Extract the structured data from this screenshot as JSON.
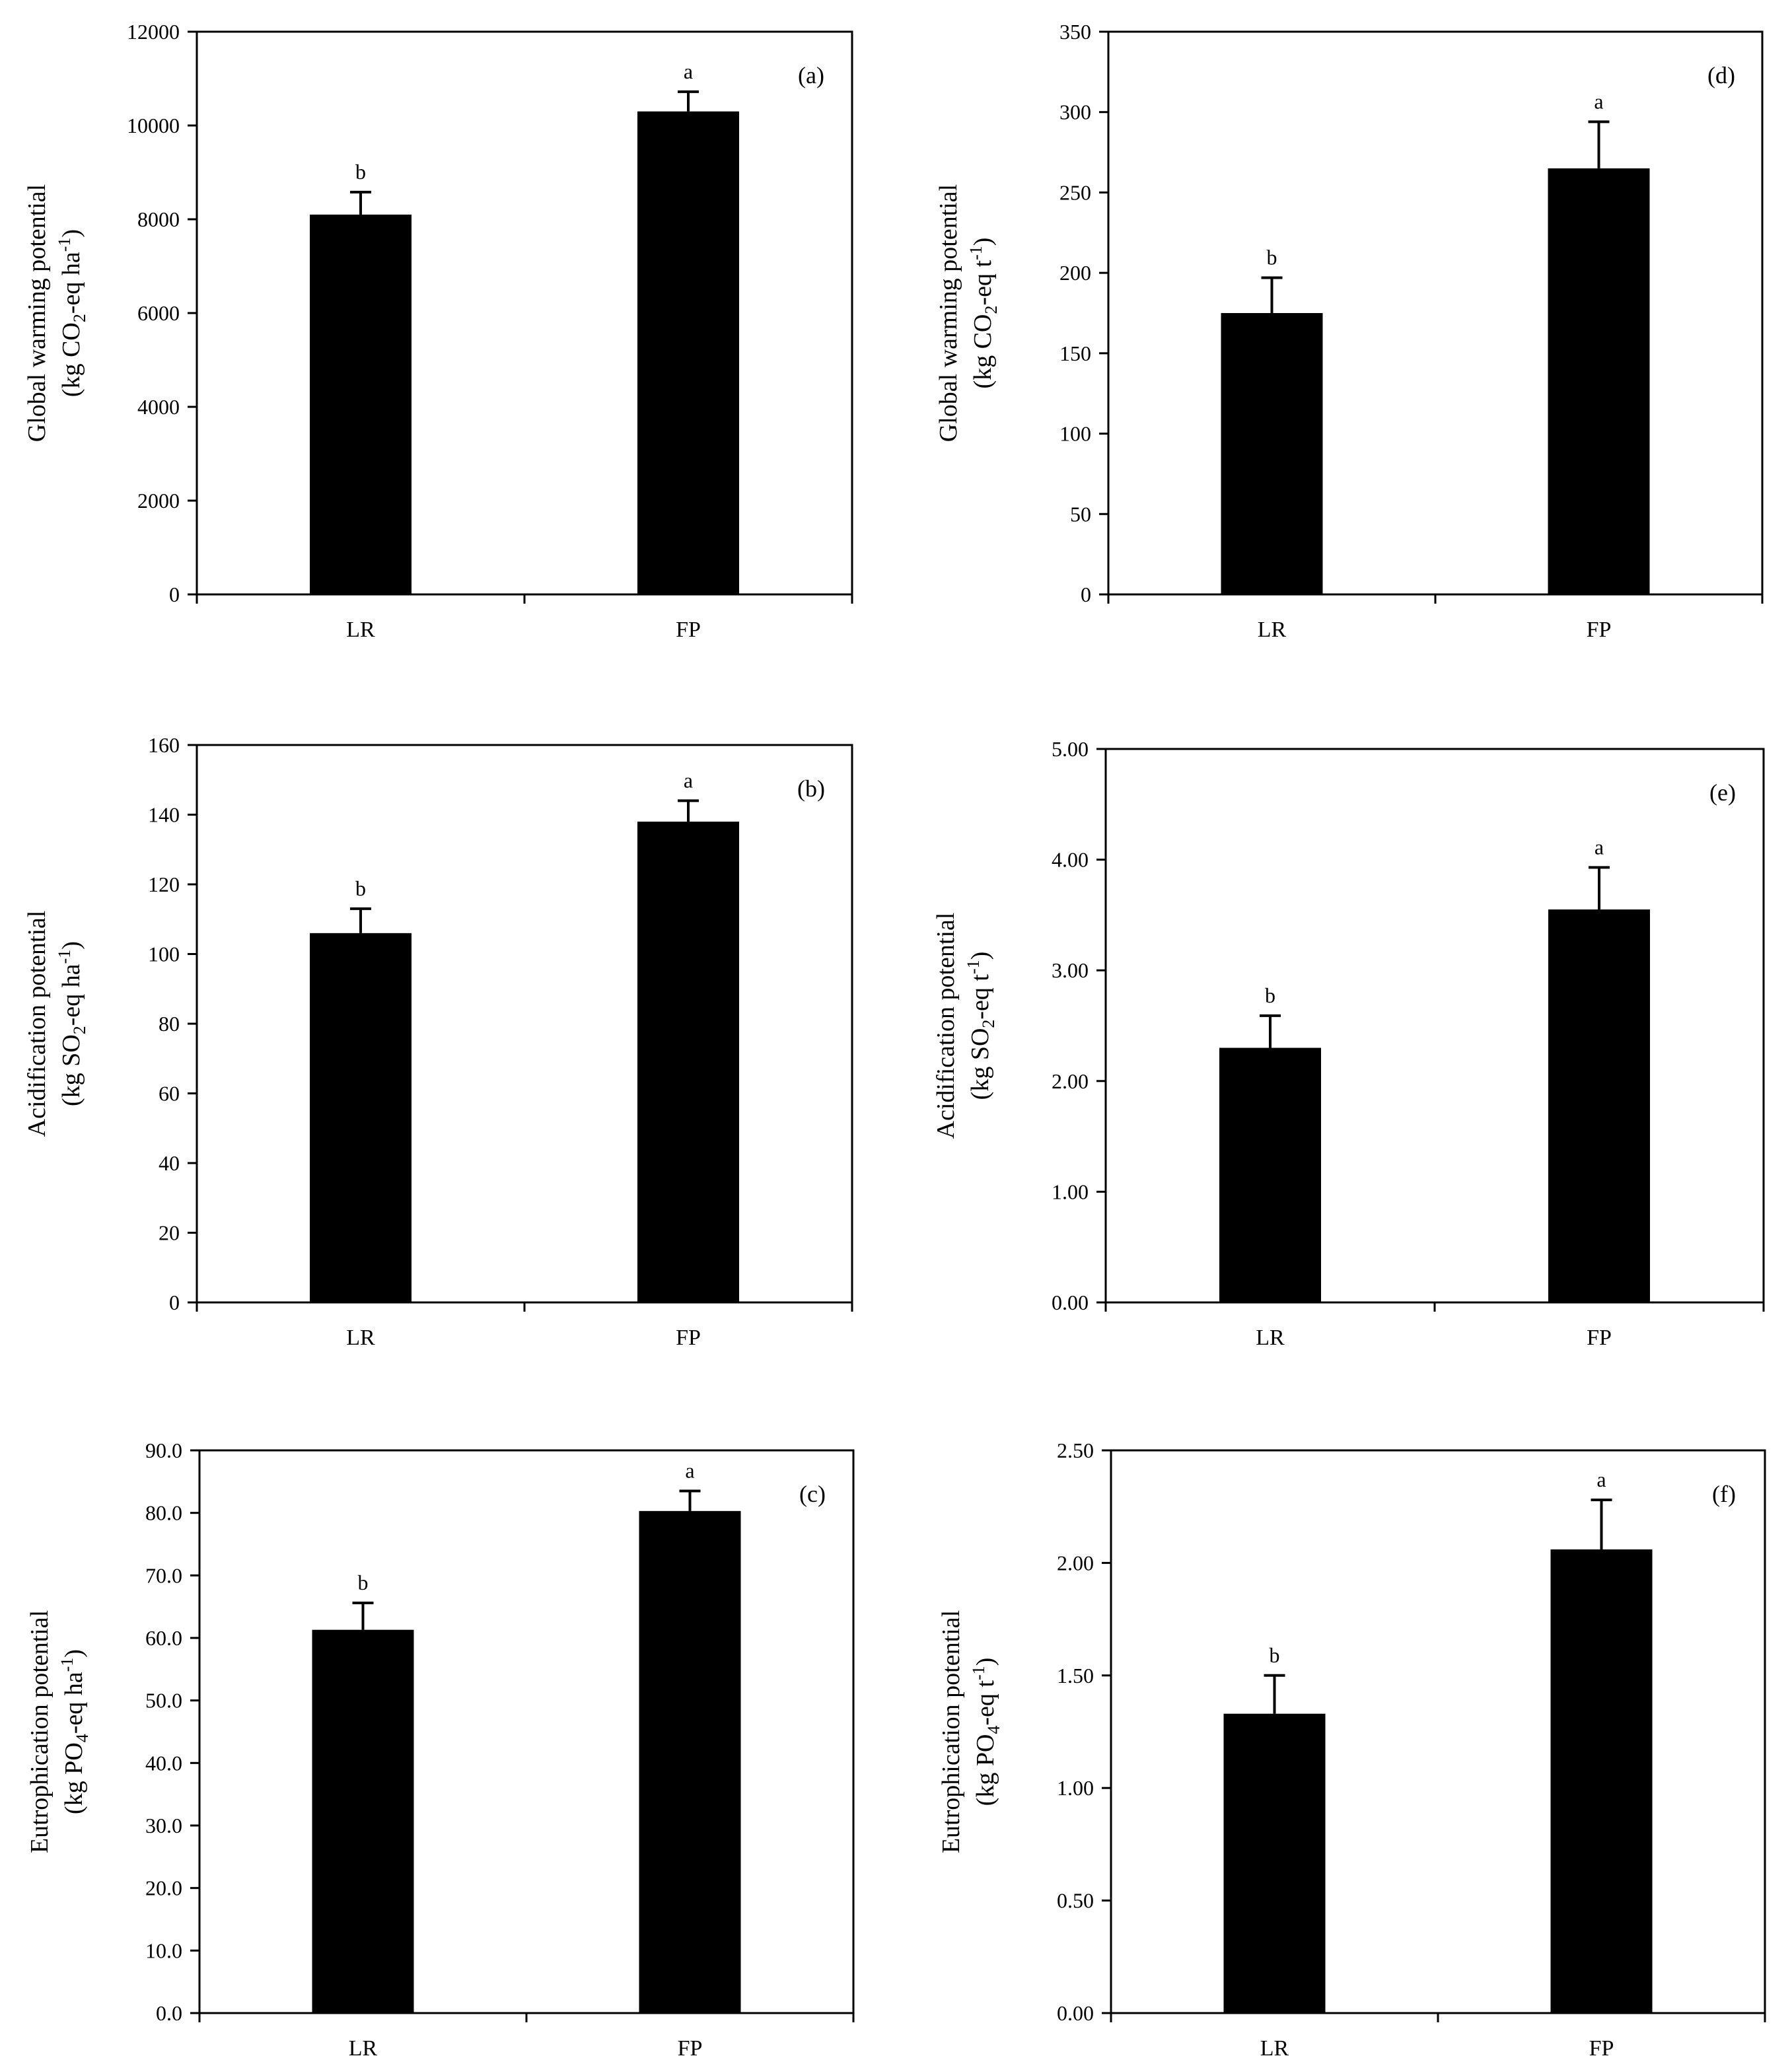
{
  "figure": {
    "panels": [
      "(a)",
      "(b)",
      "(c)",
      "(d)",
      "(e)",
      "(f)"
    ]
  },
  "chart_data": [
    {
      "type": "bar",
      "panel_label": "(a)",
      "categories": [
        "LR",
        "FP"
      ],
      "values": [
        8100,
        10300
      ],
      "errors": [
        480,
        420
      ],
      "significance": [
        "b",
        "a"
      ],
      "ylabel_line1": "Global warming potential",
      "ylabel_line2_parts": [
        "(kg CO",
        "2",
        "-eq ha",
        "-1",
        ")"
      ],
      "ylim": [
        0,
        12000
      ],
      "yticks": [
        0,
        2000,
        4000,
        6000,
        8000,
        10000,
        12000
      ],
      "ytick_labels": [
        "0",
        "2000",
        "4000",
        "6000",
        "8000",
        "10000",
        "12000"
      ],
      "grid": false,
      "bar_color": "#000000"
    },
    {
      "type": "bar",
      "panel_label": "(b)",
      "categories": [
        "LR",
        "FP"
      ],
      "values": [
        106,
        138
      ],
      "errors": [
        7,
        6
      ],
      "significance": [
        "b",
        "a"
      ],
      "ylabel_line1": "Acidification potential",
      "ylabel_line2_parts": [
        "(kg SO",
        "2",
        "-eq ha",
        "-1",
        ")"
      ],
      "ylim": [
        0,
        160
      ],
      "yticks": [
        0,
        20,
        40,
        60,
        80,
        100,
        120,
        140,
        160
      ],
      "ytick_labels": [
        "0",
        "20",
        "40",
        "60",
        "80",
        "100",
        "120",
        "140",
        "160"
      ],
      "grid": false,
      "bar_color": "#000000"
    },
    {
      "type": "bar",
      "panel_label": "(c)",
      "categories": [
        "LR",
        "FP"
      ],
      "values": [
        61.3,
        80.3
      ],
      "errors": [
        4.3,
        3.2
      ],
      "significance": [
        "b",
        "a"
      ],
      "ylabel_line1": "Eutrophication potential",
      "ylabel_line2_parts": [
        "(kg PO",
        "4",
        "-eq ha",
        "-1",
        ")"
      ],
      "ylim": [
        0,
        90
      ],
      "yticks": [
        0,
        10,
        20,
        30,
        40,
        50,
        60,
        70,
        80,
        90
      ],
      "ytick_labels": [
        "0.0",
        "10.0",
        "20.0",
        "30.0",
        "40.0",
        "50.0",
        "60.0",
        "70.0",
        "80.0",
        "90.0"
      ],
      "grid": false,
      "bar_color": "#000000"
    },
    {
      "type": "bar",
      "panel_label": "(d)",
      "categories": [
        "LR",
        "FP"
      ],
      "values": [
        175,
        265
      ],
      "errors": [
        22,
        29
      ],
      "significance": [
        "b",
        "a"
      ],
      "ylabel_line1": "Global warming potential",
      "ylabel_line2_parts": [
        "(kg CO",
        "2",
        "-eq t",
        "-1",
        ")"
      ],
      "ylim": [
        0,
        350
      ],
      "yticks": [
        0,
        50,
        100,
        150,
        200,
        250,
        300,
        350
      ],
      "ytick_labels": [
        "0",
        "50",
        "100",
        "150",
        "200",
        "250",
        "300",
        "350"
      ],
      "grid": false,
      "bar_color": "#000000"
    },
    {
      "type": "bar",
      "panel_label": "(e)",
      "categories": [
        "LR",
        "FP"
      ],
      "values": [
        2.3,
        3.55
      ],
      "errors": [
        0.29,
        0.38
      ],
      "significance": [
        "b",
        "a"
      ],
      "ylabel_line1": "Acidification potential",
      "ylabel_line2_parts": [
        "(kg SO",
        "2",
        "-eq t",
        "-1",
        ")"
      ],
      "ylim": [
        0,
        5
      ],
      "yticks": [
        0,
        1,
        2,
        3,
        4,
        5
      ],
      "ytick_labels": [
        "0.00",
        "1.00",
        "2.00",
        "3.00",
        "4.00",
        "5.00"
      ],
      "grid": false,
      "bar_color": "#000000"
    },
    {
      "type": "bar",
      "panel_label": "(f)",
      "categories": [
        "LR",
        "FP"
      ],
      "values": [
        1.33,
        2.06
      ],
      "errors": [
        0.17,
        0.22
      ],
      "significance": [
        "b",
        "a"
      ],
      "ylabel_line1": "Eutrophication potential",
      "ylabel_line2_parts": [
        "(kg PO",
        "4",
        "-eq t",
        "-1",
        ")"
      ],
      "ylim": [
        0,
        2.5
      ],
      "yticks": [
        0,
        0.5,
        1,
        1.5,
        2,
        2.5
      ],
      "ytick_labels": [
        "0.00",
        "0.50",
        "1.00",
        "1.50",
        "2.00",
        "2.50"
      ],
      "grid": false,
      "bar_color": "#000000"
    }
  ]
}
